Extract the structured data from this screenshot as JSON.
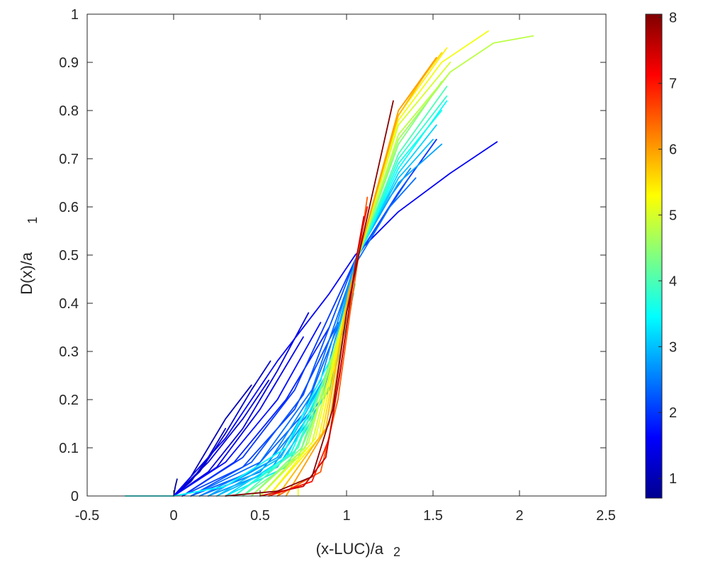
{
  "chart_data": {
    "type": "line",
    "xlabel": "(x-LUC)/a",
    "xlabel_subscript": "2",
    "ylabel": "D(x)/a",
    "ylabel_subscript": "1",
    "xlim": [
      -0.5,
      2.5
    ],
    "ylim": [
      0,
      1
    ],
    "x_ticks": [
      -0.5,
      0,
      0.5,
      1,
      1.5,
      2,
      2.5
    ],
    "x_tick_labels": [
      "-0.5",
      "0",
      "0.5",
      "1",
      "1.5",
      "2",
      "2.5"
    ],
    "y_ticks": [
      0,
      0.1,
      0.2,
      0.3,
      0.4,
      0.5,
      0.6,
      0.7,
      0.8,
      0.9,
      1
    ],
    "y_tick_labels": [
      "0",
      "0.1",
      "0.2",
      "0.3",
      "0.4",
      "0.5",
      "0.6",
      "0.7",
      "0.8",
      "0.9",
      "1"
    ],
    "grid": false,
    "colormap": "jet",
    "colorbar": {
      "range": [
        0.7,
        8.05
      ],
      "ticks": [
        1,
        2,
        3,
        4,
        5,
        6,
        7,
        8
      ],
      "tick_labels": [
        "1",
        "2",
        "3",
        "4",
        "5",
        "6",
        "7",
        "8"
      ],
      "stops": [
        "#00008f",
        "#0000ff",
        "#0080ff",
        "#00ffff",
        "#80ff80",
        "#ffff00",
        "#ff8000",
        "#ff0000",
        "#800000"
      ]
    },
    "series": [
      {
        "c": 0.75,
        "x": [
          0.0,
          0.01,
          0.02
        ],
        "y": [
          0.0,
          0.02,
          0.035
        ]
      },
      {
        "c": 1.0,
        "x": [
          0.0,
          0.1,
          0.2,
          0.3,
          0.45
        ],
        "y": [
          0.0,
          0.04,
          0.1,
          0.16,
          0.23
        ]
      },
      {
        "c": 1.1,
        "x": [
          0.0,
          0.1,
          0.2,
          0.3
        ],
        "y": [
          0.0,
          0.03,
          0.08,
          0.14
        ]
      },
      {
        "c": 1.2,
        "x": [
          0.0,
          0.15,
          0.3,
          0.45,
          0.56
        ],
        "y": [
          0.0,
          0.05,
          0.13,
          0.22,
          0.28
        ]
      },
      {
        "c": 1.3,
        "x": [
          0.0,
          0.2,
          0.4,
          0.55
        ],
        "y": [
          0.0,
          0.07,
          0.16,
          0.24
        ]
      },
      {
        "c": 1.35,
        "x": [
          0.0,
          0.2,
          0.4,
          0.6,
          0.78
        ],
        "y": [
          0.0,
          0.05,
          0.14,
          0.26,
          0.38
        ]
      },
      {
        "c": 1.45,
        "x": [
          0.0,
          0.25,
          0.5,
          0.75
        ],
        "y": [
          0.0,
          0.06,
          0.18,
          0.33
        ]
      },
      {
        "c": 1.55,
        "x": [
          0.0,
          0.3,
          0.6,
          0.9,
          1.05,
          1.3,
          1.6,
          1.87
        ],
        "y": [
          0.0,
          0.12,
          0.28,
          0.42,
          0.5,
          0.59,
          0.67,
          0.735
        ]
      },
      {
        "c": 1.7,
        "x": [
          0.0,
          0.3,
          0.6,
          0.85
        ],
        "y": [
          0.0,
          0.07,
          0.2,
          0.36
        ]
      },
      {
        "c": 1.85,
        "x": [
          0.05,
          0.35,
          0.65,
          0.9
        ],
        "y": [
          0.0,
          0.07,
          0.2,
          0.35
        ]
      },
      {
        "c": 2.0,
        "x": [
          0.05,
          0.4,
          0.7,
          1.05,
          1.3,
          1.52
        ],
        "y": [
          0.0,
          0.08,
          0.22,
          0.49,
          0.63,
          0.74
        ]
      },
      {
        "c": 2.1,
        "x": [
          0.05,
          0.4,
          0.7,
          0.95
        ],
        "y": [
          0.0,
          0.06,
          0.18,
          0.36
        ]
      },
      {
        "c": 2.2,
        "x": [
          0.1,
          0.45,
          0.75,
          1.05,
          1.25,
          1.36
        ],
        "y": [
          0.0,
          0.07,
          0.21,
          0.49,
          0.6,
          0.66
        ]
      },
      {
        "c": 2.3,
        "x": [
          0.1,
          0.45,
          0.75,
          0.98
        ],
        "y": [
          0.0,
          0.05,
          0.17,
          0.38
        ]
      },
      {
        "c": 2.4,
        "x": [
          0.1,
          0.5,
          0.8,
          1.05,
          1.25,
          1.4
        ],
        "y": [
          0.0,
          0.07,
          0.22,
          0.48,
          0.6,
          0.66
        ]
      },
      {
        "c": 2.5,
        "x": [
          0.15,
          0.5,
          0.8,
          1.0
        ],
        "y": [
          0.0,
          0.05,
          0.18,
          0.36
        ]
      },
      {
        "c": 2.6,
        "x": [
          0.15,
          0.55,
          0.85,
          1.06,
          1.25,
          1.37
        ],
        "y": [
          0.0,
          0.07,
          0.24,
          0.5,
          0.62,
          0.68
        ]
      },
      {
        "c": 2.7,
        "x": [
          0.2,
          0.55,
          0.85,
          1.0
        ],
        "y": [
          0.0,
          0.05,
          0.2,
          0.38
        ]
      },
      {
        "c": 2.8,
        "x": [
          0.2,
          0.6,
          0.88,
          1.06,
          1.3,
          1.55
        ],
        "y": [
          0.0,
          0.08,
          0.25,
          0.5,
          0.65,
          0.73
        ]
      },
      {
        "c": 2.9,
        "x": [
          0.25,
          0.6,
          0.9,
          1.03
        ],
        "y": [
          0.0,
          0.06,
          0.22,
          0.4
        ]
      },
      {
        "c": 3.0,
        "x": [
          0.25,
          0.62,
          0.9,
          1.06,
          1.3,
          1.5
        ],
        "y": [
          0.0,
          0.08,
          0.26,
          0.5,
          0.66,
          0.74
        ]
      },
      {
        "c": 3.15,
        "x": [
          0.3,
          0.65,
          0.92,
          1.07,
          1.3,
          1.52
        ],
        "y": [
          0.0,
          0.08,
          0.27,
          0.5,
          0.67,
          0.77
        ]
      },
      {
        "c": 3.3,
        "x": [
          0.3,
          0.65,
          0.92,
          1.04
        ],
        "y": [
          0.0,
          0.06,
          0.24,
          0.42
        ]
      },
      {
        "c": 3.45,
        "x": [
          -0.28,
          0.0,
          0.3,
          0.65,
          0.93,
          1.07,
          1.3,
          1.58
        ],
        "y": [
          0.0,
          0.0,
          0.02,
          0.1,
          0.3,
          0.5,
          0.68,
          0.82
        ]
      },
      {
        "c": 3.6,
        "x": [
          0.35,
          0.68,
          0.94,
          1.07,
          1.3,
          1.55
        ],
        "y": [
          0.0,
          0.09,
          0.3,
          0.5,
          0.69,
          0.8
        ]
      },
      {
        "c": 3.8,
        "x": [
          0.35,
          0.7,
          0.95,
          1.07,
          1.3,
          1.58
        ],
        "y": [
          0.0,
          0.09,
          0.31,
          0.5,
          0.7,
          0.83
        ]
      },
      {
        "c": 4.0,
        "x": [
          0.4,
          0.72,
          0.96,
          1.07,
          1.3,
          1.58
        ],
        "y": [
          0.0,
          0.1,
          0.33,
          0.5,
          0.71,
          0.85
        ]
      },
      {
        "c": 4.2,
        "x": [
          0.4,
          0.72,
          0.96,
          1.05
        ],
        "y": [
          0.0,
          0.08,
          0.3,
          0.44
        ]
      },
      {
        "c": 4.4,
        "x": [
          0.45,
          0.74,
          0.97,
          1.07,
          1.3,
          1.55
        ],
        "y": [
          0.0,
          0.1,
          0.35,
          0.5,
          0.73,
          0.86
        ]
      },
      {
        "c": 4.6,
        "x": [
          0.45,
          0.76,
          0.98,
          1.07,
          1.3,
          1.6
        ],
        "y": [
          0.0,
          0.1,
          0.36,
          0.5,
          0.74,
          0.88
        ]
      },
      {
        "c": 4.8,
        "x": [
          0.5,
          0.78,
          0.98,
          1.07,
          1.3,
          1.6,
          1.85,
          2.08
        ],
        "y": [
          0.0,
          0.11,
          0.37,
          0.5,
          0.75,
          0.88,
          0.94,
          0.955
        ]
      },
      {
        "c": 5.0,
        "x": [
          0.5,
          0.8,
          0.99,
          1.07,
          1.3,
          1.6
        ],
        "y": [
          0.0,
          0.11,
          0.38,
          0.5,
          0.77,
          0.9
        ]
      },
      {
        "c": 5.15,
        "x": [
          0.72,
          0.72
        ],
        "y": [
          0.0,
          0.03
        ]
      },
      {
        "c": 5.2,
        "x": [
          0.55,
          0.82,
          1.0,
          1.07,
          1.3,
          1.55,
          1.82
        ],
        "y": [
          0.0,
          0.12,
          0.39,
          0.5,
          0.78,
          0.9,
          0.965
        ]
      },
      {
        "c": 5.4,
        "x": [
          0.55,
          0.84,
          1.0,
          1.07,
          1.3,
          1.58
        ],
        "y": [
          0.0,
          0.12,
          0.4,
          0.5,
          0.79,
          0.93
        ]
      },
      {
        "c": 5.6,
        "x": [
          0.6,
          0.86,
          1.01,
          1.07,
          1.3,
          1.55
        ],
        "y": [
          0.0,
          0.13,
          0.41,
          0.5,
          0.8,
          0.92
        ]
      },
      {
        "c": 5.8,
        "x": [
          0.6,
          0.88,
          1.01,
          1.07,
          1.3,
          1.5
        ],
        "y": [
          0.0,
          0.14,
          0.42,
          0.5,
          0.79,
          0.9
        ]
      },
      {
        "c": 6.0,
        "x": [
          0.65,
          0.9,
          1.02,
          1.07,
          1.3,
          1.52
        ],
        "y": [
          0.0,
          0.15,
          0.43,
          0.5,
          0.8,
          0.91
        ]
      },
      {
        "c": 6.5,
        "x": [
          0.6,
          0.85,
          0.95,
          1.02,
          1.12
        ],
        "y": [
          0.0,
          0.05,
          0.2,
          0.38,
          0.62
        ]
      },
      {
        "c": 7.0,
        "x": [
          0.55,
          0.8,
          0.9,
          0.98,
          1.06,
          1.12
        ],
        "y": [
          0.0,
          0.03,
          0.12,
          0.3,
          0.5,
          0.6
        ]
      },
      {
        "c": 7.5,
        "x": [
          0.5,
          0.75,
          0.88,
          0.96,
          1.05,
          1.1
        ],
        "y": [
          0.0,
          0.02,
          0.08,
          0.25,
          0.48,
          0.58
        ]
      },
      {
        "c": 8.0,
        "x": [
          0.3,
          0.6,
          0.8,
          0.92,
          1.0,
          1.07,
          1.27
        ],
        "y": [
          0.0,
          0.01,
          0.04,
          0.18,
          0.38,
          0.5,
          0.82
        ]
      }
    ]
  }
}
